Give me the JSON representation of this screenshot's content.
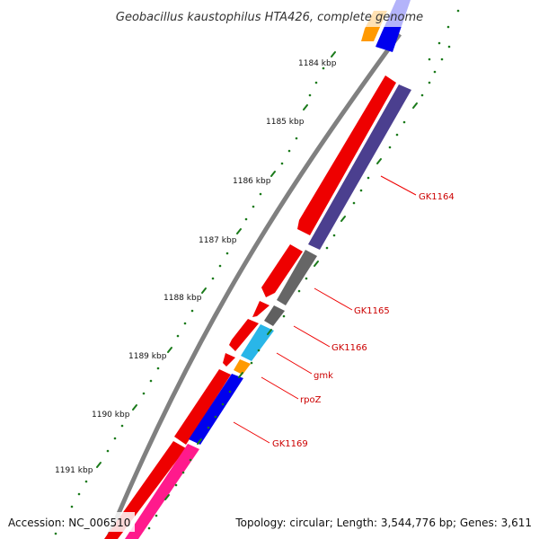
{
  "title": "Geobacillus kaustophilus HTA426, complete genome",
  "footer": {
    "accession": "Accession: NC_006510",
    "summary": "Topology: circular; Length: 3,544,776 bp; Genes: 3,611"
  },
  "kbp_labels": [
    "1184 kbp",
    "1185 kbp",
    "1186 kbp",
    "1187 kbp",
    "1188 kbp",
    "1189 kbp",
    "1190 kbp",
    "1191 kbp"
  ],
  "gene_labels": [
    "GK1164",
    "GK1165",
    "GK1166",
    "gmk",
    "rpoZ",
    "GK1169"
  ],
  "colors": {
    "backbone": "#808080",
    "outer_strand": "#ee0000",
    "gk1164": "#4b3f8f",
    "gk1165": "#666666",
    "gk1166": "#606060",
    "gmk": "#29b6e8",
    "rpoz": "#ff9900",
    "gk1169": "#0000ee",
    "pink": "#ff1a8c",
    "top_orange": "#ff9900",
    "top_blue": "#0000ee",
    "label_line": "#ee0000",
    "ticks": "#1a7a1a"
  }
}
